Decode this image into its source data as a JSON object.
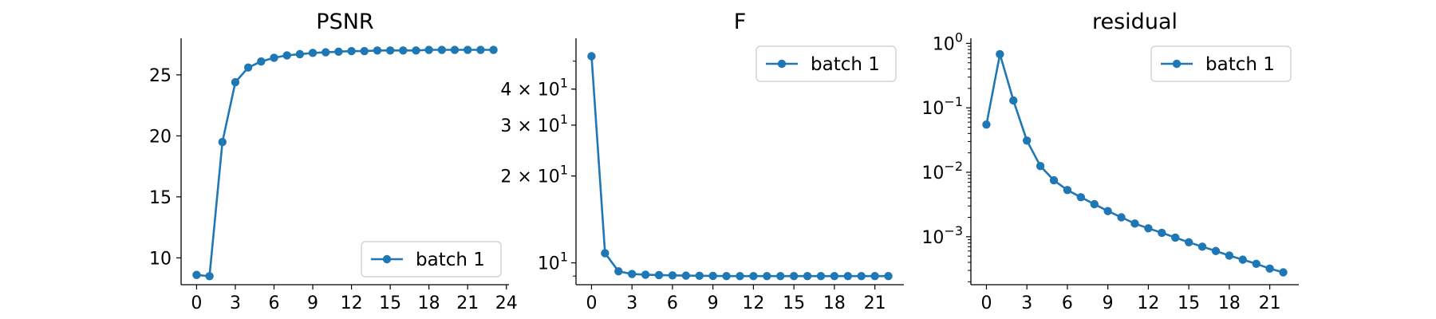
{
  "chart_data": [
    {
      "type": "line",
      "title": "PSNR",
      "xlabel": "",
      "ylabel": "",
      "yscale": "linear",
      "xlim": [
        -1.2,
        24.2
      ],
      "ylim": [
        7.8,
        28.0
      ],
      "x_ticks": [
        0,
        3,
        6,
        9,
        12,
        15,
        18,
        21,
        24
      ],
      "y_ticks": [
        10,
        15,
        20,
        25
      ],
      "legend": {
        "location": "lower right",
        "entries": [
          "batch 1"
        ]
      },
      "grid": false,
      "color": "#1f77b4",
      "series": [
        {
          "name": "batch 1",
          "x": [
            0,
            1,
            2,
            3,
            4,
            5,
            6,
            7,
            8,
            9,
            10,
            11,
            12,
            13,
            14,
            15,
            16,
            17,
            18,
            19,
            20,
            21,
            22,
            23
          ],
          "y": [
            8.6,
            8.5,
            19.5,
            24.4,
            25.6,
            26.1,
            26.4,
            26.6,
            26.7,
            26.8,
            26.85,
            26.9,
            26.95,
            26.95,
            27.0,
            27.0,
            27.0,
            27.0,
            27.05,
            27.05,
            27.05,
            27.05,
            27.05,
            27.05
          ]
        }
      ]
    },
    {
      "type": "line",
      "title": "F",
      "xlabel": "",
      "ylabel": "",
      "yscale": "log",
      "xlim": [
        -1.15,
        23.15
      ],
      "ylim": [
        8.4,
        60
      ],
      "x_ticks": [
        0,
        3,
        6,
        9,
        12,
        15,
        18,
        21
      ],
      "y_ticks": [
        {
          "value": 10,
          "base": "10",
          "exp": "1"
        },
        {
          "value": 20,
          "base": "2 × 10",
          "exp": "1"
        },
        {
          "value": 30,
          "base": "3 × 10",
          "exp": "1"
        },
        {
          "value": 40,
          "base": "4 × 10",
          "exp": "1"
        }
      ],
      "legend": {
        "location": "upper right",
        "entries": [
          "batch 1"
        ]
      },
      "grid": false,
      "color": "#1f77b4",
      "series": [
        {
          "name": "batch 1",
          "x": [
            0,
            1,
            2,
            3,
            4,
            5,
            6,
            7,
            8,
            9,
            10,
            11,
            12,
            13,
            14,
            15,
            16,
            17,
            18,
            19,
            20,
            21,
            22
          ],
          "y": [
            52,
            10.8,
            9.35,
            9.15,
            9.1,
            9.07,
            9.05,
            9.03,
            9.02,
            9.01,
            9.0,
            9.0,
            9.0,
            9.0,
            9.0,
            9.0,
            9.0,
            9.0,
            9.0,
            9.0,
            9.0,
            9.0,
            9.0
          ]
        }
      ]
    },
    {
      "type": "line",
      "title": "residual",
      "xlabel": "",
      "ylabel": "",
      "yscale": "log",
      "xlim": [
        -1.15,
        23.15
      ],
      "ylim": [
        0.00018,
        1.2
      ],
      "x_ticks": [
        0,
        3,
        6,
        9,
        12,
        15,
        18,
        21
      ],
      "y_ticks": [
        {
          "value": 1,
          "base": "10",
          "exp": "0"
        },
        {
          "value": 0.1,
          "base": "10",
          "exp": "−1"
        },
        {
          "value": 0.01,
          "base": "10",
          "exp": "−2"
        },
        {
          "value": 0.001,
          "base": "10",
          "exp": "−3"
        }
      ],
      "legend": {
        "location": "upper right",
        "entries": [
          "batch 1"
        ]
      },
      "grid": false,
      "color": "#1f77b4",
      "series": [
        {
          "name": "batch 1",
          "x": [
            0,
            1,
            2,
            3,
            4,
            5,
            6,
            7,
            8,
            9,
            10,
            11,
            12,
            13,
            14,
            15,
            16,
            17,
            18,
            19,
            20,
            21,
            22
          ],
          "y": [
            0.055,
            0.68,
            0.13,
            0.031,
            0.0125,
            0.0075,
            0.0053,
            0.0041,
            0.0032,
            0.0025,
            0.002,
            0.0016,
            0.00135,
            0.00115,
            0.00097,
            0.00082,
            0.0007,
            0.0006,
            0.00051,
            0.00044,
            0.00038,
            0.00032,
            0.00028
          ]
        }
      ]
    }
  ]
}
